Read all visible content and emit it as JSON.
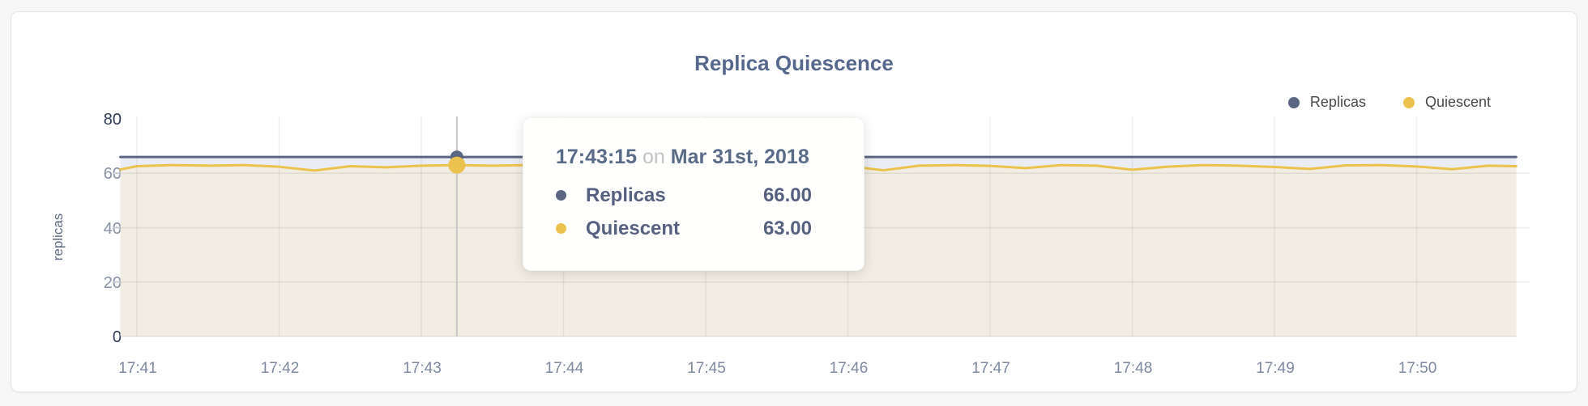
{
  "page": {
    "title": "Replica Quiescence"
  },
  "legend": {
    "items": [
      {
        "label": "Replicas",
        "color": "#5b6782"
      },
      {
        "label": "Quiescent",
        "color": "#ecc24f"
      }
    ]
  },
  "tooltip": {
    "time": "17:43:15",
    "on_word": "on",
    "date": "Mar 31st, 2018",
    "rows": [
      {
        "label": "Replicas",
        "value": "66.00",
        "color": "#5b6782"
      },
      {
        "label": "Quiescent",
        "value": "63.00",
        "color": "#ecc24f"
      }
    ]
  },
  "chart_data": {
    "type": "area",
    "title": "Replica Quiescence",
    "xlabel": "",
    "ylabel": "replicas",
    "ylim": [
      0,
      80
    ],
    "y_ticks": [
      0,
      20,
      40,
      60,
      80
    ],
    "y_gridlines": [
      20,
      40,
      60
    ],
    "x_ticks": [
      "17:41",
      "17:42",
      "17:43",
      "17:44",
      "17:45",
      "17:46",
      "17:47",
      "17:48",
      "17:49",
      "17:50"
    ],
    "x_tick_seconds": [
      0,
      60,
      120,
      180,
      240,
      300,
      360,
      420,
      480,
      540
    ],
    "grid": true,
    "legend_position": "top-right",
    "x_seconds": [
      -7,
      0,
      15,
      30,
      45,
      60,
      75,
      90,
      105,
      120,
      135,
      150,
      165,
      180,
      195,
      210,
      225,
      240,
      255,
      270,
      285,
      300,
      315,
      330,
      345,
      360,
      375,
      390,
      405,
      420,
      435,
      450,
      465,
      480,
      495,
      510,
      525,
      540,
      555,
      570,
      582
    ],
    "series": [
      {
        "name": "Replicas",
        "color": "#5b6782",
        "fill": "#eaedf3",
        "values": [
          66,
          66,
          66,
          66,
          66,
          66,
          66,
          66,
          66,
          66,
          66,
          66,
          66,
          66,
          66,
          66,
          66,
          66,
          66,
          66,
          66,
          66,
          66,
          66,
          66,
          66,
          66,
          66,
          66,
          66,
          66,
          66,
          66,
          66,
          66,
          66,
          66,
          66,
          66,
          66,
          66
        ]
      },
      {
        "name": "Quiescent",
        "color": "#ecc24f",
        "fill": "#f1ede3",
        "values": [
          61.4,
          62.6,
          63,
          62.8,
          63,
          62.4,
          61,
          62.6,
          62.2,
          62.8,
          63,
          62.8,
          63,
          62.9,
          62.2,
          61.1,
          62.7,
          63,
          62.8,
          61.9,
          62.9,
          62.6,
          61.1,
          62.8,
          63,
          62.7,
          61.9,
          63,
          62.8,
          61.3,
          62.4,
          63,
          62.8,
          62.3,
          61.6,
          62.9,
          63,
          62.5,
          61.5,
          62.8,
          62.6
        ]
      }
    ],
    "highlight": {
      "x_second": 135,
      "time": "17:43:15",
      "date": "Mar 31st, 2018",
      "values": {
        "Replicas": 66.0,
        "Quiescent": 63.0
      }
    }
  }
}
